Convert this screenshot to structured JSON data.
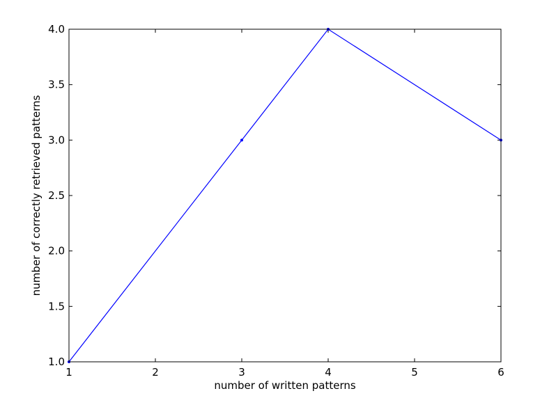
{
  "chart_data": {
    "type": "line",
    "title": "",
    "xlabel": "number of written patterns",
    "ylabel": "number of correctly retrieved patterns",
    "xlim": [
      1,
      6
    ],
    "ylim": [
      1.0,
      4.0
    ],
    "x_ticks": [
      1,
      2,
      3,
      4,
      5,
      6
    ],
    "x_tick_labels": [
      "1",
      "2",
      "3",
      "4",
      "5",
      "6"
    ],
    "y_ticks": [
      1.0,
      1.5,
      2.0,
      2.5,
      3.0,
      3.5,
      4.0
    ],
    "y_tick_labels": [
      "1.0",
      "1.5",
      "2.0",
      "2.5",
      "3.0",
      "3.5",
      "4.0"
    ],
    "grid": false,
    "legend": "none",
    "series": [
      {
        "x": [
          1,
          3,
          4,
          6
        ],
        "y": [
          1,
          3,
          4,
          3
        ],
        "color": "#0000ff",
        "marker": "point"
      }
    ]
  }
}
